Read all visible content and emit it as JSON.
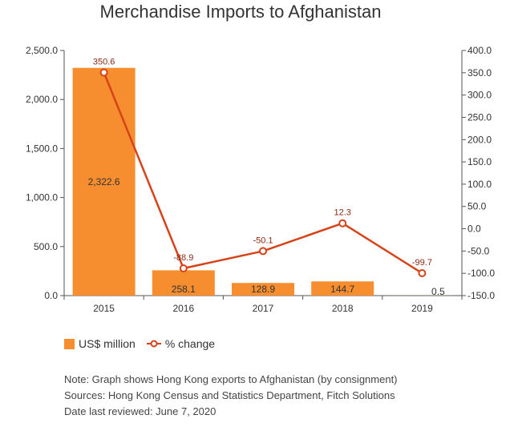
{
  "colors": {
    "bar": "#f68d2e",
    "line": "#d6431a",
    "axis": "#555555",
    "label_dark": "#333333",
    "label_line": "#8b2a12"
  },
  "legend": {
    "bar_label": "US$ million",
    "line_label": "% change"
  },
  "notes": {
    "note": "Note: Graph shows Hong Kong exports to Afghanistan (by consignment)",
    "sources": "Sources: Hong Kong Census and Statistics Department, Fitch Solutions",
    "reviewed": "Date last reviewed: June 7, 2020"
  },
  "chart_data": {
    "type": "bar",
    "title": "Merchandise Imports to Afghanistan",
    "categories": [
      "2015",
      "2016",
      "2017",
      "2018",
      "2019"
    ],
    "series": [
      {
        "name": "US$ million",
        "type": "bar",
        "axis": "left",
        "values": [
          2322.6,
          258.1,
          128.9,
          144.7,
          0.5
        ],
        "labels": [
          "2,322.6",
          "258.1",
          "128.9",
          "144.7",
          "0.5"
        ]
      },
      {
        "name": "% change",
        "type": "line",
        "axis": "right",
        "values": [
          350.6,
          -88.9,
          -50.1,
          12.3,
          -99.7
        ],
        "labels": [
          "350.6",
          "-88.9",
          "-50.1",
          "12.3",
          "-99.7"
        ]
      }
    ],
    "y_left": {
      "range": [
        0,
        2500
      ],
      "ticks": [
        0,
        500,
        1000,
        1500,
        2000,
        2500
      ],
      "tick_labels": [
        "0.0",
        "500.0",
        "1,000.0",
        "1,500.0",
        "2,000.0",
        "2,500.0"
      ]
    },
    "y_right": {
      "range": [
        -150,
        400
      ],
      "ticks": [
        -150,
        -100,
        -50,
        0,
        50,
        100,
        150,
        200,
        250,
        300,
        350,
        400
      ],
      "tick_labels": [
        "-150.0",
        "-100.0",
        "-50.0",
        "0.0",
        "50.0",
        "100.0",
        "150.0",
        "200.0",
        "250.0",
        "300.0",
        "350.0",
        "400.0"
      ]
    },
    "grid": false,
    "legend_position": "bottom-left"
  }
}
